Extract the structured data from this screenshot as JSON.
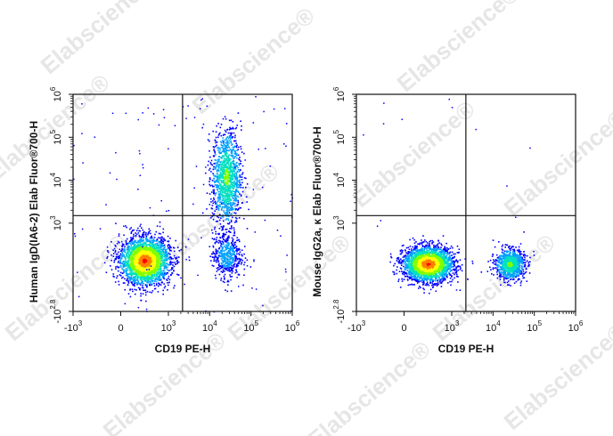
{
  "watermark": "Elabscience®",
  "density_colors": [
    "#0000ff",
    "#00a0ff",
    "#00e0c0",
    "#7fff00",
    "#ffff00",
    "#ff8000",
    "#ff0000"
  ],
  "chart_data": [
    {
      "type": "scatter",
      "subtype": "flow-cytometry-density-dot-plot",
      "xlabel": "CD19 PE-H",
      "ylabel": "Human IgD(IA6-2) Elab Fluor®700-H",
      "x_scale": "biexponential",
      "y_scale": "biexponential",
      "xlim": [
        -1000,
        1000000
      ],
      "ylim": [
        -630,
        1000000
      ],
      "x_ticks": [
        {
          "value": -1000,
          "base": "-10",
          "exp": "3"
        },
        {
          "value": 0,
          "base": "0",
          "exp": ""
        },
        {
          "value": 1000,
          "base": "10",
          "exp": "3"
        },
        {
          "value": 10000,
          "base": "10",
          "exp": "4"
        },
        {
          "value": 100000,
          "base": "10",
          "exp": "5"
        },
        {
          "value": 1000000,
          "base": "10",
          "exp": "6"
        }
      ],
      "y_ticks": [
        {
          "value": -630,
          "base": "-10",
          "exp": "2.8"
        },
        {
          "value": 1000,
          "base": "10",
          "exp": "3"
        },
        {
          "value": 10000,
          "base": "10",
          "exp": "4"
        },
        {
          "value": 100000,
          "base": "10",
          "exp": "5"
        },
        {
          "value": 1000000,
          "base": "10",
          "exp": "6"
        }
      ],
      "gate": {
        "x": 2200,
        "y": 1500
      },
      "populations": [
        {
          "x": 400,
          "y": 200,
          "spread_x": 0.6,
          "spread_y": 0.55,
          "n": 2600,
          "density": "high"
        },
        {
          "x": 25000,
          "y": 12000,
          "spread_x": 0.35,
          "spread_y": 1.1,
          "n": 1200,
          "density": "medium"
        },
        {
          "x": 25000,
          "y": 300,
          "spread_x": 0.35,
          "spread_y": 0.55,
          "n": 500,
          "density": "low"
        }
      ]
    },
    {
      "type": "scatter",
      "subtype": "flow-cytometry-density-dot-plot",
      "xlabel": "CD19 PE-H",
      "ylabel": "Mouse IgG2a, κ Elab Fluor®700-H",
      "x_scale": "biexponential",
      "y_scale": "biexponential",
      "xlim": [
        -1000,
        1000000
      ],
      "ylim": [
        -630,
        1000000
      ],
      "x_ticks": [
        {
          "value": -1000,
          "base": "-10",
          "exp": "3"
        },
        {
          "value": 0,
          "base": "0",
          "exp": ""
        },
        {
          "value": 1000,
          "base": "10",
          "exp": "3"
        },
        {
          "value": 10000,
          "base": "10",
          "exp": "4"
        },
        {
          "value": 100000,
          "base": "10",
          "exp": "5"
        },
        {
          "value": 1000000,
          "base": "10",
          "exp": "6"
        }
      ],
      "y_ticks": [
        {
          "value": -630,
          "base": "-10",
          "exp": "2.8"
        },
        {
          "value": 1000,
          "base": "10",
          "exp": "3"
        },
        {
          "value": 10000,
          "base": "10",
          "exp": "4"
        },
        {
          "value": 100000,
          "base": "10",
          "exp": "5"
        },
        {
          "value": 1000000,
          "base": "10",
          "exp": "6"
        }
      ],
      "gate": {
        "x": 2200,
        "y": 1500
      },
      "populations": [
        {
          "x": 400,
          "y": 150,
          "spread_x": 0.6,
          "spread_y": 0.4,
          "n": 2600,
          "density": "high"
        },
        {
          "x": 25000,
          "y": 150,
          "spread_x": 0.35,
          "spread_y": 0.35,
          "n": 900,
          "density": "medium"
        }
      ]
    }
  ]
}
